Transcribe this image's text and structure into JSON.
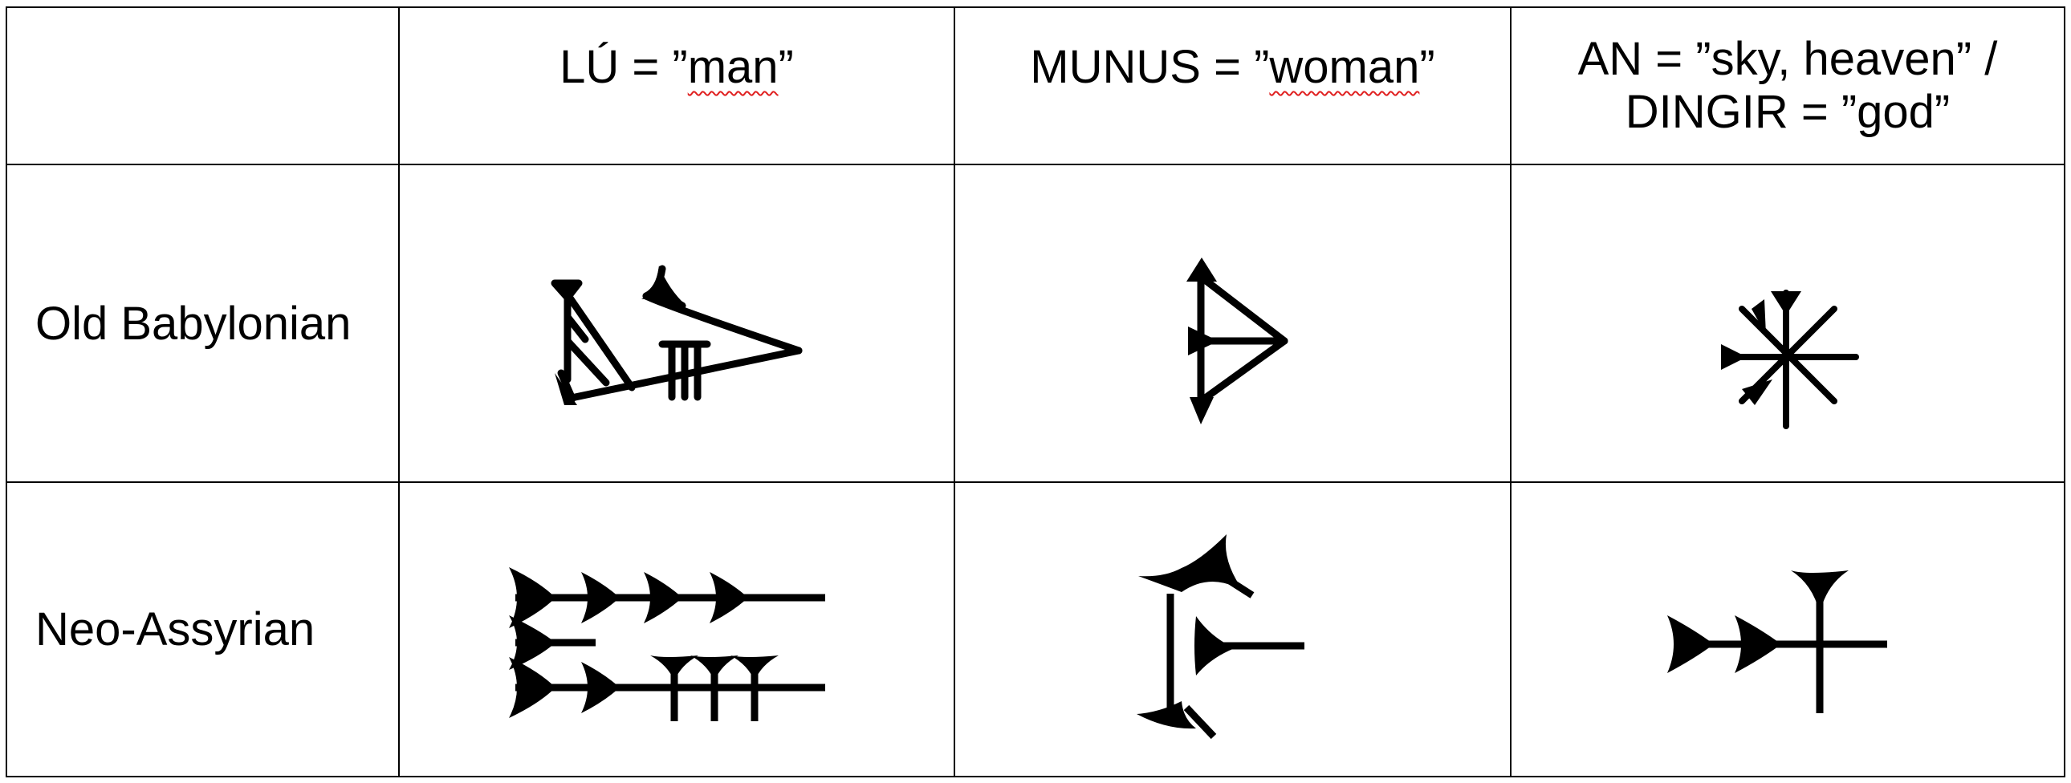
{
  "table": {
    "columns": [
      {
        "id": "lu",
        "sign": "LÚ",
        "eq": " = ",
        "q_open": "”",
        "gloss": "man",
        "q_close": "”",
        "spell_flag": true
      },
      {
        "id": "munus",
        "sign": "MUNUS",
        "eq": " = ",
        "q_open": "”",
        "gloss": "woman",
        "q_close": "”",
        "spell_flag": true
      },
      {
        "id": "an",
        "line1": "AN = ”sky, heaven” /",
        "line2": "DINGIR = ”god”"
      }
    ],
    "rows": [
      {
        "label": "Old Babylonian"
      },
      {
        "label": "Neo-Assyrian"
      }
    ]
  },
  "colors": {
    "ink": "#000000",
    "rule": "#000000",
    "spellcheck": "#e02020",
    "background": "#ffffff"
  }
}
